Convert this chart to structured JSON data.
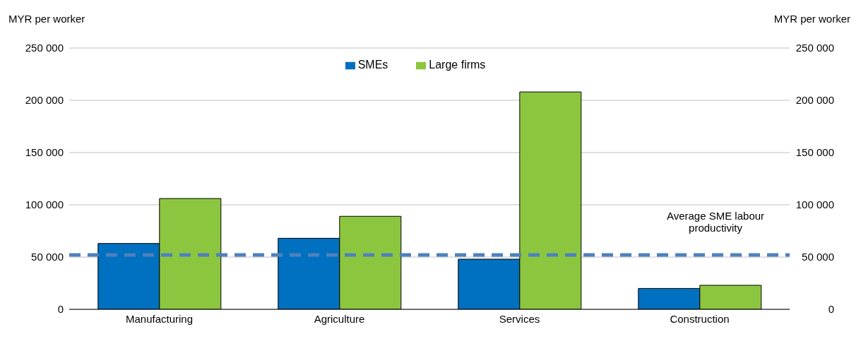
{
  "chart_data": {
    "type": "bar",
    "categories": [
      "Manufacturing",
      "Agriculture",
      "Services",
      "Construction"
    ],
    "series": [
      {
        "name": "SMEs",
        "color": "#0070c0",
        "values": [
          63000,
          68000,
          48000,
          20000
        ]
      },
      {
        "name": "Large firms",
        "color": "#8cc63f",
        "values": [
          106000,
          89000,
          208000,
          23000
        ]
      }
    ],
    "ylabel": "MYR per worker",
    "y2label": "MYR per worker",
    "ylim": [
      0,
      250000
    ],
    "yticks": [
      0,
      {
        "value": 50000,
        "label": "50 000"
      },
      {
        "value": 100000,
        "label": "100 000"
      },
      {
        "value": 150000,
        "label": "150 000"
      },
      {
        "value": 200000,
        "label": "200 000"
      },
      {
        "value": 250000,
        "label": "250 000"
      }
    ],
    "y2lim": [
      0,
      250000
    ],
    "y2ticks": [
      0,
      {
        "value": 50000,
        "label": "50 000"
      },
      {
        "value": 100000,
        "label": "100 000"
      },
      {
        "value": 150000,
        "label": "150 000"
      },
      {
        "value": 200000,
        "label": "200 000"
      },
      {
        "value": 250000,
        "label": "250 000"
      }
    ],
    "ref_lines": [
      {
        "axis": "y",
        "value": 52000,
        "label": "Average SME labour productivity",
        "color": "#4f81bd",
        "line_style": "dashed"
      }
    ],
    "grid": "y",
    "legend": "top"
  }
}
